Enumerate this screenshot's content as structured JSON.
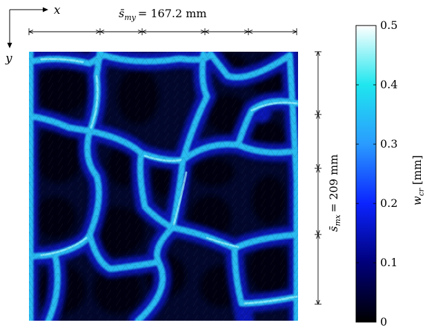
{
  "axes": {
    "x_label": "x",
    "y_label": "y"
  },
  "dimensions": {
    "mean_spacing_y": {
      "label": "s̄my = 167.2 mm",
      "symbol": "s̄",
      "subscript": "my",
      "value_text": "= 167.2 mm"
    },
    "mean_spacing_x": {
      "label": "s̄mx = 209 mm",
      "symbol": "s̄",
      "subscript": "mx",
      "value_text": "= 209 mm"
    }
  },
  "colorbar": {
    "quantity": "w",
    "quantity_subscript": "cr",
    "unit": "[mm]",
    "ticks": [
      "0",
      "0.1",
      "0.2",
      "0.3",
      "0.4",
      "0.5"
    ],
    "min": 0,
    "max": 0.5,
    "colormap": [
      "#000000",
      "#00007a",
      "#0b24ff",
      "#2a9bff",
      "#1fe6ee",
      "#ffffff"
    ]
  },
  "colors": {
    "background": "#ffffff",
    "frame": "#000000",
    "plate_base": "#02072c"
  }
}
